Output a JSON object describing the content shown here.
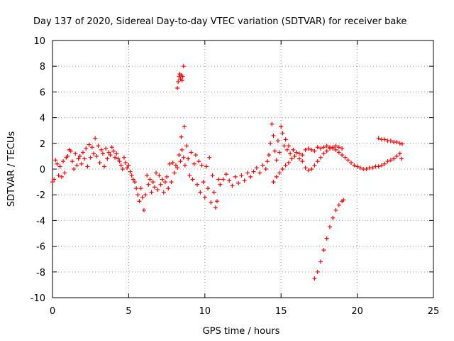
{
  "chart_data": {
    "type": "scatter",
    "title": "Day 137 of 2020, Sidereal Day-to-day VTEC variation (SDTVAR) for receiver bake",
    "xlabel": "GPS time / hours",
    "ylabel": "SDTVAR / TECUs",
    "xlim": [
      0,
      25
    ],
    "ylim": [
      -10,
      10
    ],
    "xticks": [
      0,
      5,
      10,
      15,
      20,
      25
    ],
    "yticks": [
      -10,
      -8,
      -6,
      -4,
      -2,
      0,
      2,
      4,
      6,
      8,
      10
    ],
    "grid": true,
    "marker": "+",
    "color": "#ff0000",
    "series": [
      {
        "name": "main-trace",
        "points": [
          [
            0.0,
            -1.0
          ],
          [
            0.1,
            -0.8
          ],
          [
            0.2,
            0.7
          ],
          [
            0.3,
            0.4
          ],
          [
            0.4,
            -0.5
          ],
          [
            0.5,
            0.2
          ],
          [
            0.6,
            -0.6
          ],
          [
            0.7,
            0.6
          ],
          [
            0.8,
            -0.3
          ],
          [
            0.9,
            0.9
          ],
          [
            1.0,
            1.0
          ],
          [
            1.1,
            1.5
          ],
          [
            1.2,
            1.4
          ],
          [
            1.3,
            0.6
          ],
          [
            1.4,
            0.0
          ],
          [
            1.5,
            1.2
          ],
          [
            1.6,
            0.3
          ],
          [
            1.7,
            0.8
          ],
          [
            1.8,
            1.0
          ],
          [
            1.9,
            0.4
          ],
          [
            2.0,
            1.3
          ],
          [
            2.1,
            0.8
          ],
          [
            2.2,
            1.6
          ],
          [
            2.3,
            0.2
          ],
          [
            2.4,
            1.9
          ],
          [
            2.5,
            0.9
          ],
          [
            2.6,
            1.7
          ],
          [
            2.7,
            1.2
          ],
          [
            2.8,
            2.4
          ],
          [
            2.9,
            1.0
          ],
          [
            3.0,
            1.8
          ],
          [
            3.1,
            0.5
          ],
          [
            3.2,
            1.5
          ],
          [
            3.3,
            1.2
          ],
          [
            3.4,
            0.2
          ],
          [
            3.5,
            1.6
          ],
          [
            3.6,
            0.8
          ],
          [
            3.7,
            1.3
          ],
          [
            3.8,
            1.1
          ],
          [
            3.9,
            1.7
          ],
          [
            4.0,
            1.4
          ],
          [
            4.1,
            0.9
          ],
          [
            4.2,
            1.2
          ],
          [
            4.3,
            0.8
          ],
          [
            4.4,
            0.6
          ],
          [
            4.5,
            0.3
          ],
          [
            4.6,
            0.0
          ],
          [
            4.7,
            0.9
          ],
          [
            4.8,
            0.5
          ],
          [
            4.9,
            0.1
          ],
          [
            5.0,
            0.3
          ],
          [
            5.1,
            -0.2
          ],
          [
            5.2,
            -0.5
          ],
          [
            5.3,
            -0.8
          ],
          [
            5.4,
            -1.0
          ],
          [
            5.5,
            -1.5
          ],
          [
            5.6,
            -2.0
          ],
          [
            5.7,
            -2.5
          ],
          [
            5.8,
            -1.5
          ],
          [
            5.9,
            -2.2
          ],
          [
            6.0,
            -3.2
          ],
          [
            6.1,
            -2.0
          ],
          [
            6.2,
            -0.5
          ],
          [
            6.3,
            -1.2
          ],
          [
            6.4,
            -0.8
          ],
          [
            6.5,
            -1.8
          ],
          [
            6.6,
            -1.0
          ],
          [
            6.7,
            -1.4
          ],
          [
            6.8,
            -0.3
          ],
          [
            6.9,
            -1.6
          ],
          [
            7.0,
            -0.5
          ],
          [
            7.1,
            -1.2
          ],
          [
            7.2,
            -0.8
          ],
          [
            7.3,
            -1.8
          ],
          [
            7.4,
            -1.0
          ],
          [
            7.5,
            -0.6
          ],
          [
            7.6,
            -1.5
          ],
          [
            7.7,
            0.4
          ],
          [
            7.8,
            -1.0
          ],
          [
            7.9,
            0.5
          ],
          [
            8.0,
            -0.3
          ],
          [
            8.1,
            0.3
          ],
          [
            8.2,
            0.1
          ],
          [
            8.3,
            1.1
          ],
          [
            8.4,
            0.6
          ],
          [
            8.5,
            1.5
          ],
          [
            8.6,
            0.9
          ],
          [
            8.7,
            0.3
          ],
          [
            8.8,
            1.8
          ],
          [
            8.9,
            0.8
          ],
          [
            9.0,
            -0.5
          ],
          [
            9.1,
            1.3
          ],
          [
            9.2,
            -0.8
          ],
          [
            9.3,
            0.4
          ],
          [
            9.4,
            1.1
          ],
          [
            9.5,
            -1.2
          ],
          [
            9.6,
            0.6
          ],
          [
            9.7,
            -1.8
          ],
          [
            9.8,
            0.3
          ],
          [
            9.9,
            -1.0
          ],
          [
            10.0,
            -2.2
          ],
          [
            10.1,
            0.2
          ],
          [
            10.2,
            -1.5
          ],
          [
            10.3,
            0.9
          ],
          [
            10.4,
            -2.6
          ],
          [
            10.5,
            -0.5
          ],
          [
            10.6,
            -1.8
          ],
          [
            10.7,
            -3.0
          ],
          [
            10.8,
            -2.5
          ],
          [
            10.9,
            -0.8
          ],
          [
            11.0,
            -1.2
          ],
          [
            11.2,
            -0.8
          ],
          [
            11.4,
            -0.4
          ],
          [
            11.6,
            -0.9
          ],
          [
            11.8,
            -1.3
          ],
          [
            12.0,
            -0.6
          ],
          [
            12.2,
            -1.1
          ],
          [
            12.4,
            -0.5
          ],
          [
            12.6,
            -0.9
          ],
          [
            12.8,
            -0.3
          ],
          [
            13.0,
            -0.6
          ],
          [
            13.2,
            -0.2
          ],
          [
            13.4,
            0.1
          ],
          [
            13.6,
            -0.3
          ],
          [
            13.8,
            0.3
          ],
          [
            14.0,
            0.0
          ],
          [
            14.1,
            0.6
          ],
          [
            14.2,
            1.1
          ],
          [
            14.3,
            2.0
          ],
          [
            14.4,
            3.5
          ],
          [
            14.5,
            2.6
          ],
          [
            14.6,
            1.4
          ],
          [
            14.7,
            0.7
          ],
          [
            14.8,
            2.2
          ],
          [
            14.9,
            1.3
          ],
          [
            15.0,
            3.3
          ],
          [
            15.1,
            2.8
          ],
          [
            15.2,
            1.8
          ],
          [
            15.3,
            2.3
          ],
          [
            15.4,
            1.5
          ],
          [
            15.5,
            1.8
          ],
          [
            15.6,
            1.2
          ],
          [
            15.8,
            1.5
          ],
          [
            16.0,
            1.3
          ],
          [
            16.2,
            0.8
          ],
          [
            16.4,
            1.1
          ],
          [
            16.6,
            1.5
          ],
          [
            16.8,
            1.6
          ],
          [
            17.0,
            1.5
          ],
          [
            17.2,
            1.4
          ],
          [
            17.4,
            1.7
          ],
          [
            17.6,
            1.6
          ],
          [
            17.8,
            1.7
          ],
          [
            18.0,
            1.8
          ],
          [
            18.2,
            1.7
          ],
          [
            18.4,
            1.6
          ],
          [
            18.6,
            1.5
          ],
          [
            18.8,
            1.3
          ],
          [
            19.0,
            1.1
          ],
          [
            19.2,
            0.9
          ],
          [
            19.4,
            0.7
          ],
          [
            19.6,
            0.5
          ],
          [
            19.8,
            0.3
          ],
          [
            20.0,
            0.2
          ],
          [
            20.2,
            0.1
          ],
          [
            20.4,
            0.0
          ],
          [
            20.6,
            0.0
          ],
          [
            20.8,
            0.1
          ],
          [
            21.0,
            0.1
          ],
          [
            21.2,
            0.2
          ],
          [
            21.4,
            0.2
          ],
          [
            21.6,
            0.3
          ],
          [
            21.8,
            0.4
          ],
          [
            22.0,
            0.6
          ],
          [
            22.2,
            0.7
          ],
          [
            22.4,
            0.8
          ],
          [
            22.6,
            1.0
          ],
          [
            22.8,
            1.2
          ],
          [
            22.9,
            0.8
          ]
        ]
      },
      {
        "name": "lower-branch-15h",
        "points": [
          [
            14.5,
            -1.0
          ],
          [
            14.7,
            -0.6
          ],
          [
            14.9,
            -0.3
          ],
          [
            15.1,
            0.0
          ],
          [
            15.3,
            0.3
          ],
          [
            15.5,
            0.5
          ],
          [
            15.7,
            0.8
          ],
          [
            15.9,
            1.0
          ]
        ]
      },
      {
        "name": "loop-16-19h",
        "points": [
          [
            16.2,
            1.2
          ],
          [
            16.4,
            0.6
          ],
          [
            16.6,
            0.1
          ],
          [
            16.8,
            -0.1
          ],
          [
            17.0,
            0.0
          ],
          [
            17.2,
            0.3
          ],
          [
            17.4,
            0.6
          ],
          [
            17.6,
            0.9
          ],
          [
            17.8,
            1.2
          ],
          [
            18.0,
            1.4
          ],
          [
            18.2,
            1.6
          ],
          [
            18.4,
            1.7
          ],
          [
            18.6,
            1.8
          ],
          [
            18.8,
            1.7
          ],
          [
            19.0,
            1.6
          ]
        ]
      },
      {
        "name": "upper-band-21-23h",
        "points": [
          [
            21.4,
            2.4
          ],
          [
            21.6,
            2.3
          ],
          [
            21.8,
            2.3
          ],
          [
            22.0,
            2.2
          ],
          [
            22.2,
            2.2
          ],
          [
            22.4,
            2.1
          ],
          [
            22.6,
            2.1
          ],
          [
            22.8,
            2.0
          ],
          [
            22.95,
            1.95
          ]
        ]
      },
      {
        "name": "isolated-cluster-8h",
        "points": [
          [
            8.2,
            6.3
          ],
          [
            8.25,
            6.8
          ],
          [
            8.3,
            7.2
          ],
          [
            8.35,
            7.4
          ],
          [
            8.4,
            7.0
          ],
          [
            8.45,
            7.3
          ],
          [
            8.5,
            6.9
          ],
          [
            8.55,
            7.2
          ],
          [
            8.6,
            8.0
          ],
          [
            8.65,
            3.3
          ],
          [
            8.45,
            2.5
          ]
        ]
      },
      {
        "name": "descending-branch-17-19h",
        "points": [
          [
            17.2,
            -8.5
          ],
          [
            17.4,
            -8.0
          ],
          [
            17.6,
            -7.2
          ],
          [
            17.8,
            -6.3
          ],
          [
            18.0,
            -5.4
          ],
          [
            18.2,
            -4.5
          ],
          [
            18.4,
            -3.8
          ],
          [
            18.6,
            -3.2
          ],
          [
            18.8,
            -2.8
          ],
          [
            19.0,
            -2.5
          ],
          [
            19.1,
            -2.4
          ]
        ]
      }
    ]
  }
}
